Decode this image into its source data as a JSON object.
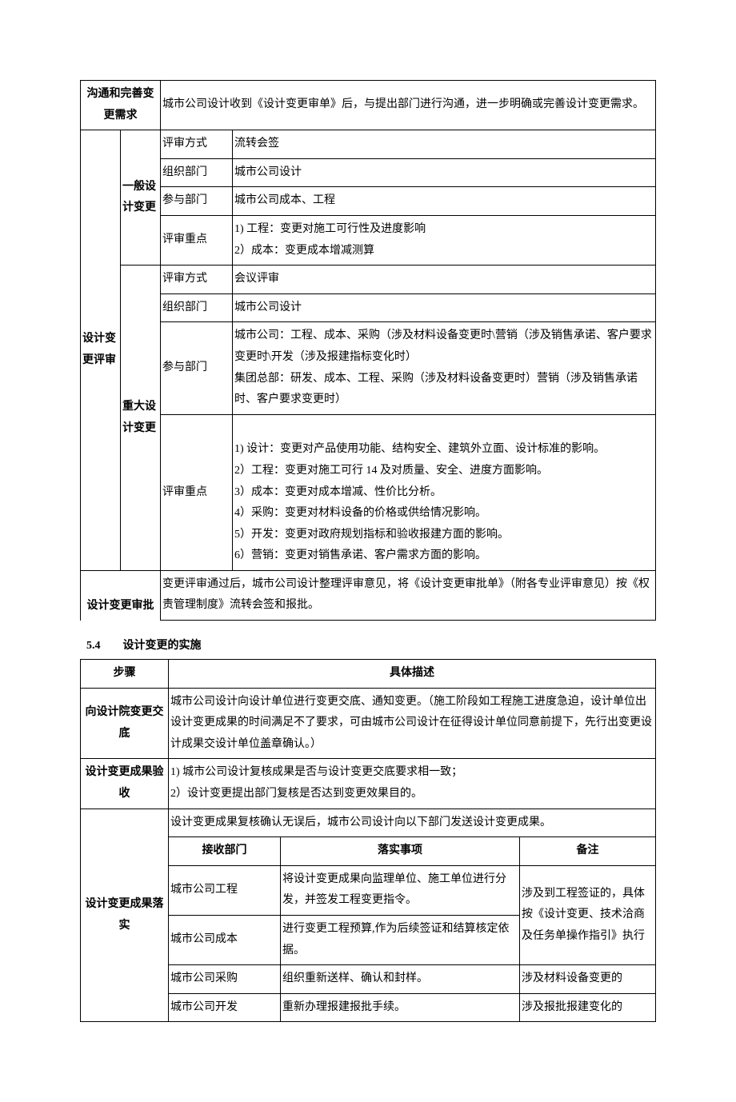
{
  "table1": {
    "r1c1": "沟通和完善变更需求",
    "r1c2": "城市公司设计收到《设计变更审单》后，与提出部门进行沟通，进一步明确或完善设计变更需求。",
    "review_group": "设计变更评审",
    "general": {
      "label": "一般设计变更",
      "rows": [
        {
          "k": "评审方式",
          "v": "流转会签"
        },
        {
          "k": "组织部门",
          "v": "城市公司设计"
        },
        {
          "k": "参与部门",
          "v": "城市公司成本、工程"
        },
        {
          "k": "评审重点",
          "v": "1) 工程：变更对施工可行性及进度影响\n2）成本：变更成本增减测算"
        }
      ]
    },
    "major": {
      "label": "重大设计变更",
      "rows": [
        {
          "k": "评审方式",
          "v": "会议评审"
        },
        {
          "k": "组织部门",
          "v": "城市公司设计"
        },
        {
          "k": "参与部门",
          "v": "城市公司：工程、成本、采购（涉及材料设备变更时\\营销（涉及销售承诺、客户要求变更时\\开发（涉及报建指标变化时）\n集团总部：研发、成本、工程、采购（涉及材料设备变更时）营销（涉及销售承诺时、客户要求变更时）"
        },
        {
          "k": "评审重点",
          "v": "\n1) 设计：变更对产品使用功能、结构安全、建筑外立面、设计标准的影响。\n2）工程：变更对施工可行 14 及对质量、安全、进度方面影响。\n3）成本：变更对成本增减、性价比分析。\n4）采购：变更对材料设备的价格或供给情况影响。\n5）开发：变更对政府规划指标和验收报建方面的影响。\n6）营销：变更对销售承诺、客户需求方面的影响。"
        }
      ]
    },
    "approval_label": "设计变更审批",
    "approval_text": "变更评审通过后，城市公司设计整理评审意见，将《设计变更审批单》（附各专业评审意见）按《权责管理制度》流转会签和报批。"
  },
  "section54": "5.4　　设计变更的实施",
  "table2": {
    "head_step": "步骤",
    "head_desc": "具体描述",
    "r1_label": "向设计院变更交底",
    "r1_text": "城市公司设计向设计单位进行变更交底、通知变更。（施工阶段如工程施工进度急迫，设计单位出设计变更成果的时间满足不了要求，可由城市公司设计在征得设计单位同意前提下，先行出变更设计成果交设计单位盖章确认。）",
    "r2_label": "设计变更成果验收",
    "r2_text": "1) 城市公司设计复核成果是否与设计变更交底要求相一致；\n2）设计变更提出部门复核是否达到变更效果目的。",
    "r3_label": "设计变更成果落实",
    "r3_intro": "设计变更成果复核确认无误后，城市公司设计向以下部门发送设计变更成果。",
    "sub_head_recv": "接收部门",
    "sub_head_item": "落实事项",
    "sub_head_remark": "备注",
    "sub_rows": [
      {
        "recv": "城市公司工程",
        "item": "将设计变更成果向监理单位、施工单位进行分发，并签发工程变更指令。",
        "remark_group": "涉及到工程签证的，具体按《设计变更、技术洽商及任务单操作指引》执行"
      },
      {
        "recv": "城市公司成本",
        "item": "进行变更工程预算,作为后续签证和结算核定依据。"
      },
      {
        "recv": "城市公司采购",
        "item": "组织重新送样、确认和封样。",
        "remark": "涉及材料设备变更的"
      },
      {
        "recv": "城市公司开发",
        "item": "重新办理报建报批手续。",
        "remark": "涉及报批报建变化的"
      }
    ]
  }
}
